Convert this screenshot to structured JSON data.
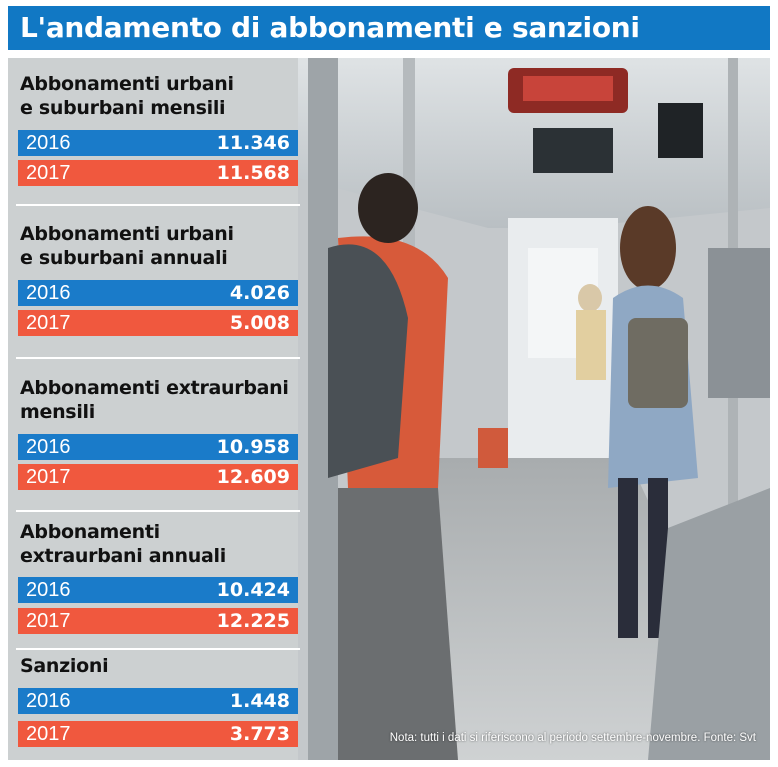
{
  "title": "L'andamento di abbonamenti e sanzioni",
  "note": "Nota: tutti i dati si riferiscono al periodo settembre-novembre. Fonte: Svt",
  "colors": {
    "title_bg": "#1178c4",
    "y2016": "#1a7bc9",
    "y2017": "#f0583e"
  },
  "chart_data": {
    "type": "table",
    "title": "L'andamento di abbonamenti e sanzioni",
    "years": [
      "2016",
      "2017"
    ],
    "groups": [
      {
        "label_lines": [
          "Abbonamenti urbani",
          "e suburbani mensili"
        ],
        "rows": [
          {
            "year": "2016",
            "value": "11.346"
          },
          {
            "year": "2017",
            "value": "11.568"
          }
        ]
      },
      {
        "label_lines": [
          "Abbonamenti urbani",
          "e suburbani annuali"
        ],
        "rows": [
          {
            "year": "2016",
            "value": "4.026"
          },
          {
            "year": "2017",
            "value": "5.008"
          }
        ]
      },
      {
        "label_lines": [
          "Abbonamenti extraurbani",
          "mensili"
        ],
        "rows": [
          {
            "year": "2016",
            "value": "10.958"
          },
          {
            "year": "2017",
            "value": "12.609"
          }
        ]
      },
      {
        "label_lines": [
          "Abbonamenti",
          "extraurbani annuali"
        ],
        "rows": [
          {
            "year": "2016",
            "value": "10.424"
          },
          {
            "year": "2017",
            "value": "12.225"
          }
        ]
      },
      {
        "label_lines": [
          "Sanzioni"
        ],
        "rows": [
          {
            "year": "2016",
            "value": "1.448"
          },
          {
            "year": "2017",
            "value": "3.773"
          }
        ]
      }
    ]
  }
}
